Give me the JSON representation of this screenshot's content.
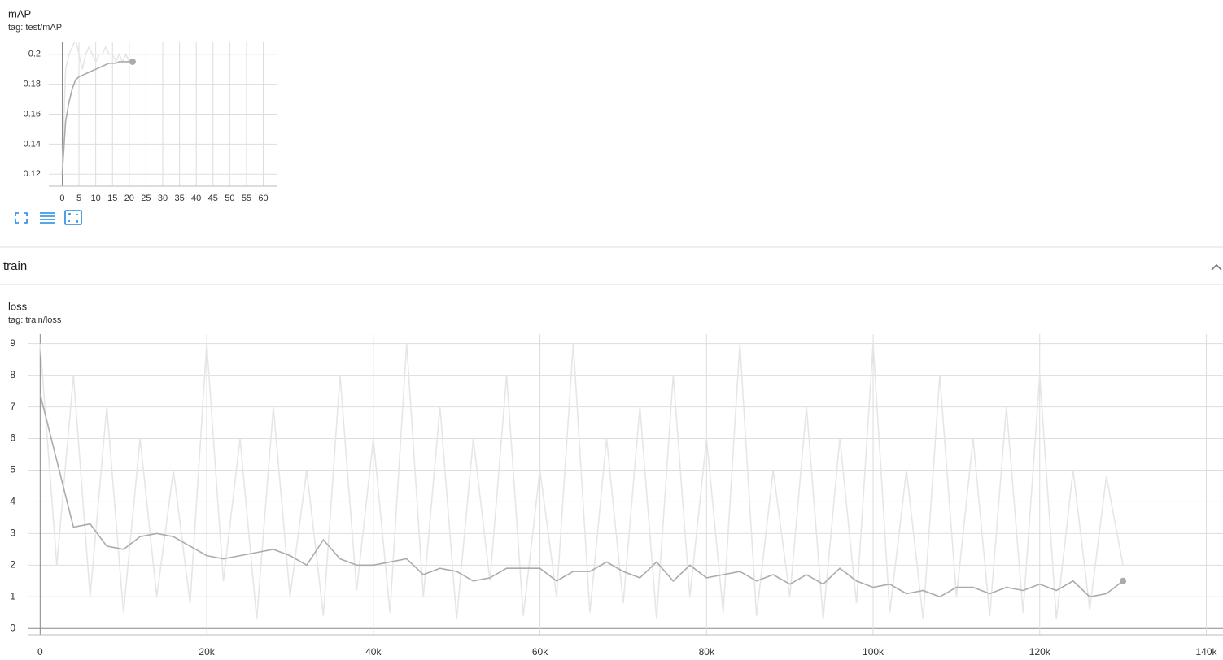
{
  "section": "train",
  "chart_data": [
    {
      "type": "line",
      "title": "mAP",
      "subtitle": "tag: test/mAP",
      "x": [
        0,
        1,
        2,
        3,
        4,
        5,
        6,
        7,
        8,
        9,
        10,
        11,
        12,
        13,
        14,
        15,
        16,
        17,
        18,
        19,
        20,
        21
      ],
      "series": [
        {
          "color": "#e6e6e6",
          "values": [
            0.12,
            0.19,
            0.2,
            0.205,
            0.21,
            0.2,
            0.19,
            0.2,
            0.205,
            0.2,
            0.195,
            0.2,
            0.2,
            0.205,
            0.2,
            0.2,
            0.195,
            0.2,
            0.195,
            0.2,
            0.195,
            0.195
          ]
        },
        {
          "color": "#ababab",
          "values": [
            0.12,
            0.155,
            0.168,
            0.177,
            0.183,
            0.185,
            0.186,
            0.187,
            0.188,
            0.189,
            0.19,
            0.191,
            0.192,
            0.193,
            0.194,
            0.194,
            0.194,
            0.195,
            0.195,
            0.195,
            0.195,
            0.195
          ]
        }
      ],
      "xlim": [
        -4,
        64
      ],
      "ylim": [
        0.112,
        0.208
      ],
      "xticks": [
        0,
        5,
        10,
        15,
        20,
        25,
        30,
        35,
        40,
        45,
        50,
        55,
        60
      ],
      "yticks": [
        0.12,
        0.14,
        0.16,
        0.18,
        0.2
      ],
      "grid": true
    },
    {
      "type": "line",
      "title": "loss",
      "subtitle": "tag: train/loss",
      "x": [
        0,
        2000,
        4000,
        6000,
        8000,
        10000,
        12000,
        14000,
        16000,
        18000,
        20000,
        22000,
        24000,
        26000,
        28000,
        30000,
        32000,
        34000,
        36000,
        38000,
        40000,
        42000,
        44000,
        46000,
        48000,
        50000,
        52000,
        54000,
        56000,
        58000,
        60000,
        62000,
        64000,
        66000,
        68000,
        70000,
        72000,
        74000,
        76000,
        78000,
        80000,
        82000,
        84000,
        86000,
        88000,
        90000,
        92000,
        94000,
        96000,
        98000,
        100000,
        102000,
        104000,
        106000,
        108000,
        110000,
        112000,
        114000,
        116000,
        118000,
        120000,
        122000,
        124000,
        126000,
        128000,
        130000
      ],
      "series": [
        {
          "color": "#e6e6e6",
          "values": [
            9,
            2,
            8,
            1,
            7,
            0.5,
            6,
            1,
            5,
            0.8,
            9,
            1.5,
            6,
            0.3,
            7,
            1,
            5,
            0.4,
            8,
            1.2,
            6,
            0.5,
            9,
            1,
            7,
            0.3,
            6,
            1.5,
            8,
            0.4,
            5,
            1,
            9,
            0.5,
            6,
            0.8,
            7,
            0.3,
            8,
            1,
            6,
            0.5,
            9,
            0.4,
            5,
            1,
            7,
            0.3,
            6,
            0.8,
            9,
            0.5,
            5,
            0.3,
            8,
            1,
            6,
            0.4,
            7,
            0.5,
            8,
            0.3,
            5,
            0.6,
            4.8,
            2
          ]
        },
        {
          "color": "#ababab",
          "values": [
            7.4,
            5.3,
            3.2,
            3.3,
            2.6,
            2.5,
            2.9,
            3.0,
            2.9,
            2.6,
            2.3,
            2.2,
            2.3,
            2.4,
            2.5,
            2.3,
            2.0,
            2.8,
            2.2,
            2.0,
            2.0,
            2.1,
            2.2,
            1.7,
            1.9,
            1.8,
            1.5,
            1.6,
            1.9,
            1.9,
            1.9,
            1.5,
            1.8,
            1.8,
            2.1,
            1.8,
            1.6,
            2.1,
            1.5,
            2.0,
            1.6,
            1.7,
            1.8,
            1.5,
            1.7,
            1.4,
            1.7,
            1.4,
            1.9,
            1.5,
            1.3,
            1.4,
            1.1,
            1.2,
            1.0,
            1.3,
            1.3,
            1.1,
            1.3,
            1.2,
            1.4,
            1.2,
            1.5,
            1.0,
            1.1,
            1.5
          ]
        }
      ],
      "xlim": [
        -1400,
        142000
      ],
      "ylim": [
        -0.2,
        9.3
      ],
      "xticks": [
        0,
        {
          "value": 20000,
          "label": "20k"
        },
        {
          "value": 40000,
          "label": "40k"
        },
        {
          "value": 60000,
          "label": "60k"
        },
        {
          "value": 80000,
          "label": "80k"
        },
        {
          "value": 100000,
          "label": "100k"
        },
        {
          "value": 120000,
          "label": "120k"
        },
        {
          "value": 140000,
          "label": "140k"
        }
      ],
      "yticks": [
        0,
        1,
        2,
        3,
        4,
        5,
        6,
        7,
        8,
        9
      ],
      "grid": true
    }
  ]
}
